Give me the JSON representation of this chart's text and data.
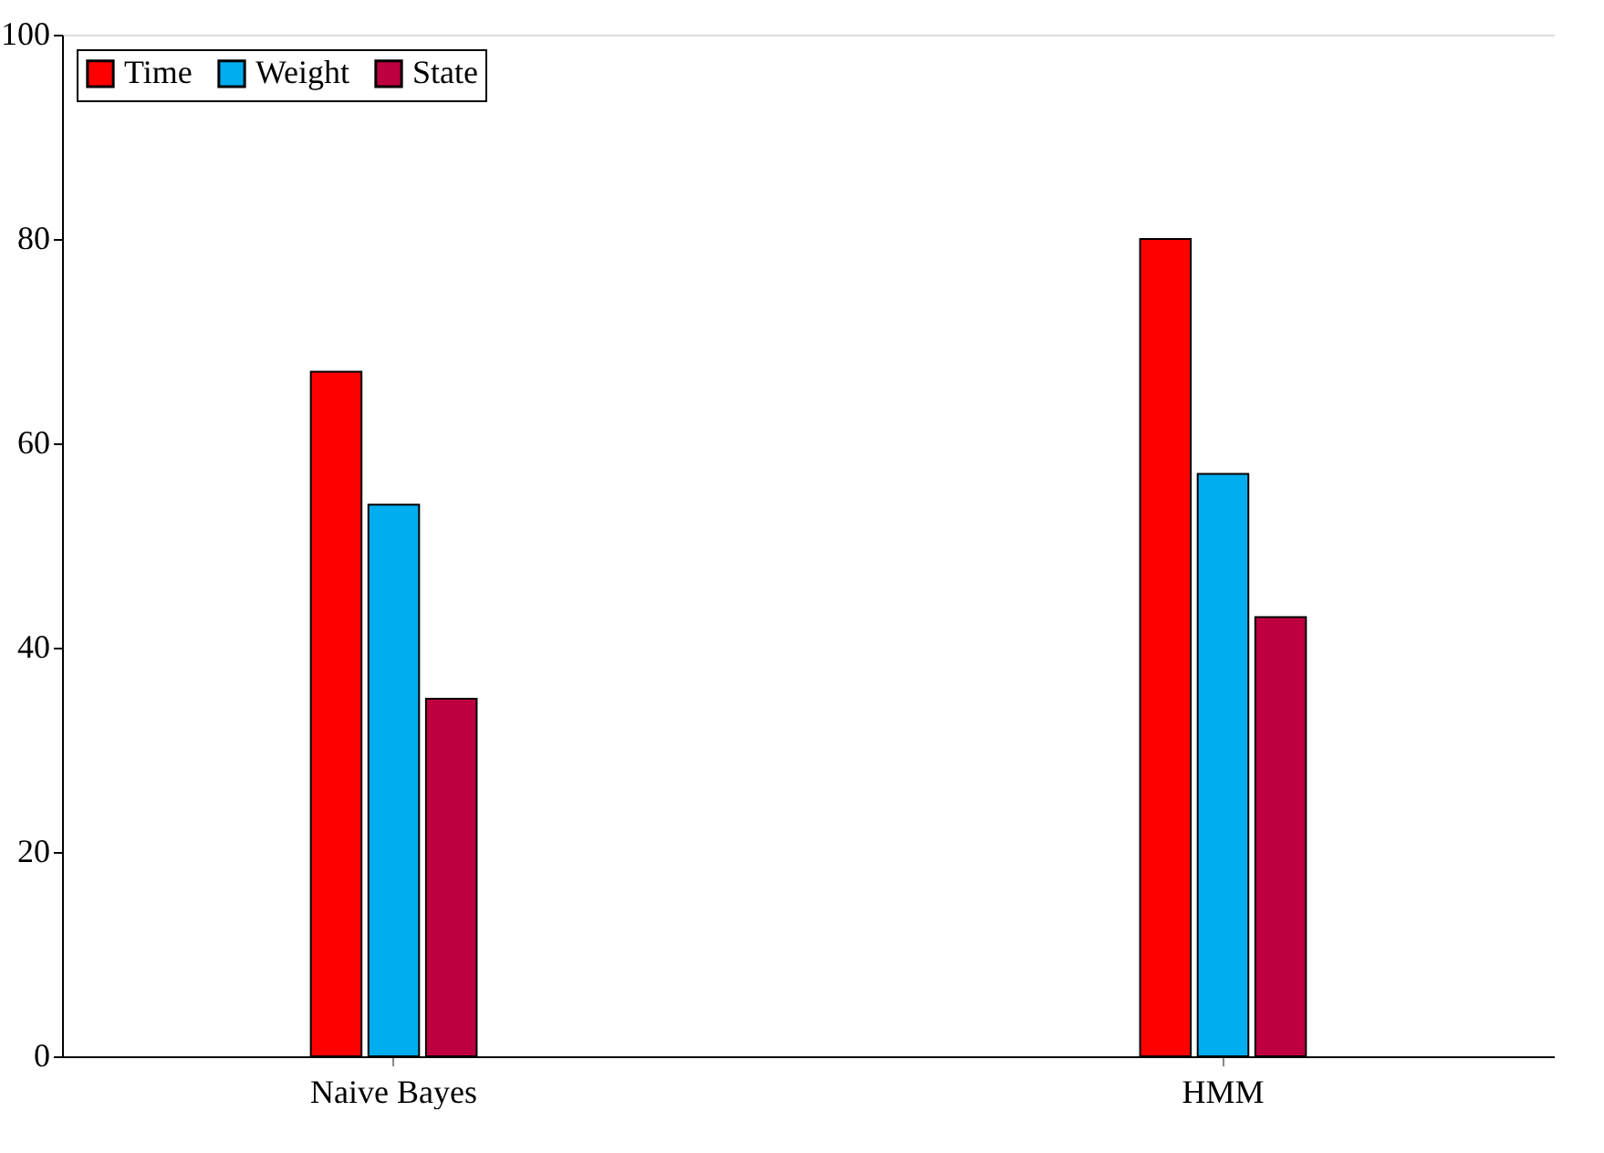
{
  "chart_data": {
    "type": "bar",
    "categories": [
      "Naive Bayes",
      "HMM"
    ],
    "series": [
      {
        "name": "Time",
        "color": "#ff0000",
        "values": [
          67,
          80
        ]
      },
      {
        "name": "Weight",
        "color": "#00adef",
        "values": [
          54,
          57
        ]
      },
      {
        "name": "State",
        "color": "#bf0040",
        "values": [
          35,
          43
        ]
      }
    ],
    "ylim": [
      0,
      100
    ],
    "yticks": [
      0,
      20,
      40,
      60,
      80,
      100
    ],
    "grid": false,
    "legend": "top left"
  }
}
